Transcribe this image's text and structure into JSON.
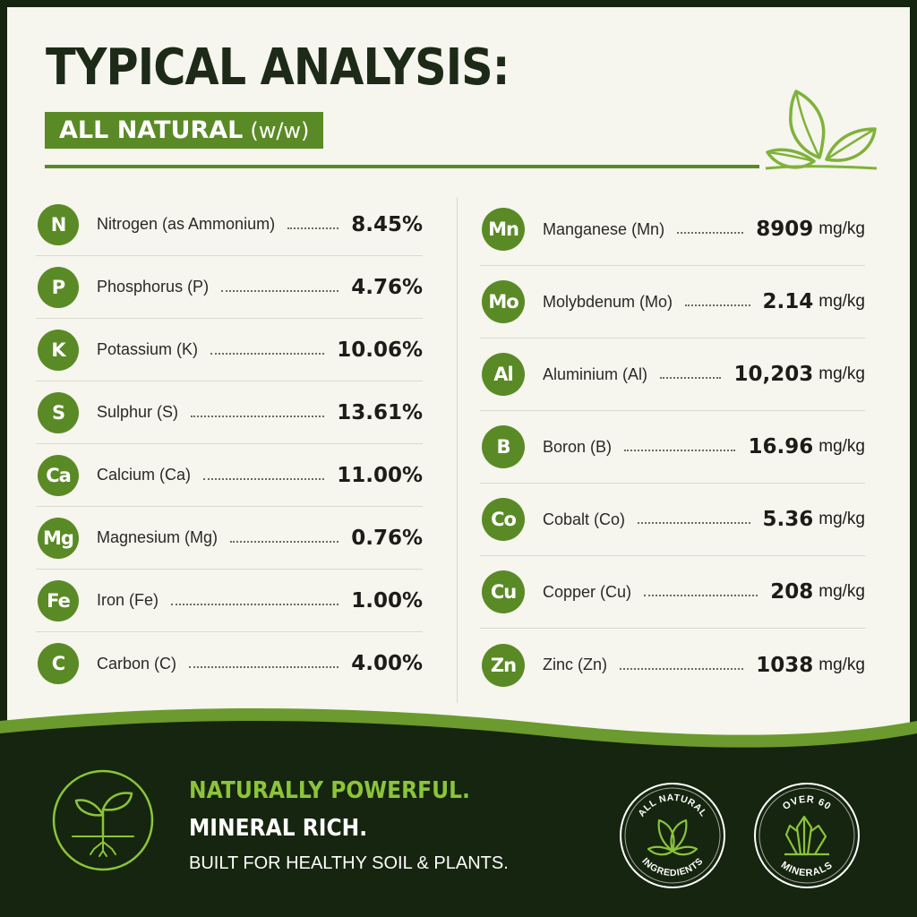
{
  "header": {
    "title": "TYPICAL ANALYSIS:",
    "subtitle": "ALL NATURAL",
    "subtitle_unit": "(w/w)"
  },
  "left_items": [
    {
      "symbol": "N",
      "name": "Nitrogen (as Ammonium)",
      "value": "8.45%"
    },
    {
      "symbol": "P",
      "name": "Phosphorus (P)",
      "value": "4.76%"
    },
    {
      "symbol": "K",
      "name": "Potassium (K)",
      "value": "10.06%"
    },
    {
      "symbol": "S",
      "name": "Sulphur (S)",
      "value": "13.61%"
    },
    {
      "symbol": "Ca",
      "name": "Calcium (Ca)",
      "value": "11.00%"
    },
    {
      "symbol": "Mg",
      "name": "Magnesium (Mg)",
      "value": "0.76%"
    },
    {
      "symbol": "Fe",
      "name": "Iron (Fe)",
      "value": "1.00%"
    },
    {
      "symbol": "C",
      "name": "Carbon (C)",
      "value": "4.00%"
    }
  ],
  "right_items": [
    {
      "symbol": "Mn",
      "name": "Manganese (Mn)",
      "value": "8909",
      "unit": "mg/kg"
    },
    {
      "symbol": "Mo",
      "name": "Molybdenum (Mo)",
      "value": "2.14",
      "unit": "mg/kg"
    },
    {
      "symbol": "Al",
      "name": "Aluminium (Al)",
      "value": "10,203",
      "unit": "mg/kg"
    },
    {
      "symbol": "B",
      "name": "Boron (B)",
      "value": "16.96",
      "unit": "mg/kg"
    },
    {
      "symbol": "Co",
      "name": "Cobalt (Co)",
      "value": "5.36",
      "unit": "mg/kg"
    },
    {
      "symbol": "Cu",
      "name": "Copper (Cu)",
      "value": "208",
      "unit": "mg/kg"
    },
    {
      "symbol": "Zn",
      "name": "Zinc (Zn)",
      "value": "1038",
      "unit": "mg/kg"
    }
  ],
  "footer": {
    "tagline1": "NATURALLY POWERFUL.",
    "tagline2": "MINERAL RICH.",
    "tagline3": "BUILT FOR HEALTHY SOIL & PLANTS.",
    "seal1": {
      "top": "ALL NATURAL",
      "bottom": "INGREDIENTS",
      "icon": "leaves-icon"
    },
    "seal2": {
      "top": "OVER 60",
      "bottom": "MINERALS",
      "icon": "crystal-icon"
    },
    "main_icon": "sprout-roots-icon"
  },
  "colors": {
    "accent_green": "#5a8a25",
    "light_green": "#8cc43a",
    "dark_background": "#15250f",
    "panel_background": "#f6f5ee"
  }
}
